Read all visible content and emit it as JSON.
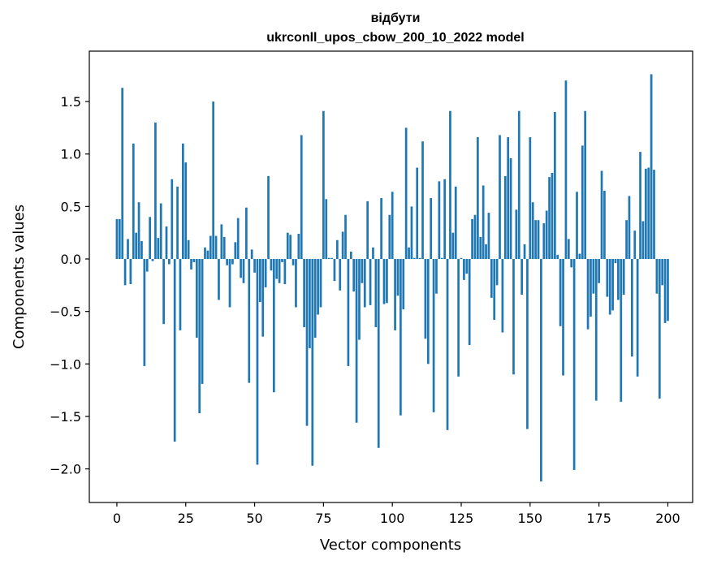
{
  "chart_data": {
    "type": "bar",
    "title": "відбути",
    "subtitle": "ukrconll_upos_cbow_200_10_2022 model",
    "xlabel": "Vector components",
    "ylabel": "Components values",
    "xlim": [
      -10,
      209
    ],
    "ylim": [
      -2.32,
      1.98
    ],
    "xticks": [
      0,
      25,
      50,
      75,
      100,
      125,
      150,
      175,
      200
    ],
    "yticks": [
      -2.0,
      -1.5,
      -1.0,
      -0.5,
      0.0,
      0.5,
      1.0,
      1.5
    ],
    "ytick_labels": [
      "−2.0",
      "−1.5",
      "−1.0",
      "−0.5",
      "0.0",
      "0.5",
      "1.0",
      "1.5"
    ],
    "bar_color": "#1f77b4",
    "grid": false,
    "values": [
      0.38,
      0.38,
      1.63,
      -0.25,
      0.19,
      -0.24,
      1.1,
      0.25,
      0.54,
      0.17,
      -1.02,
      -0.12,
      0.4,
      -0.02,
      1.3,
      0.2,
      0.53,
      -0.62,
      0.31,
      -0.05,
      0.76,
      -1.74,
      0.69,
      -0.68,
      1.1,
      0.92,
      0.18,
      -0.1,
      -0.03,
      -0.75,
      -1.47,
      -1.19,
      0.11,
      0.08,
      0.22,
      1.5,
      0.22,
      -0.39,
      0.33,
      0.21,
      -0.06,
      -0.46,
      -0.05,
      0.16,
      0.39,
      -0.18,
      -0.23,
      0.49,
      -1.18,
      0.09,
      -0.13,
      -1.96,
      -0.41,
      -0.74,
      -0.27,
      0.79,
      -0.11,
      -1.27,
      -0.19,
      -0.23,
      -0.03,
      -0.24,
      0.25,
      0.23,
      -0.06,
      -0.46,
      0.24,
      1.18,
      -0.65,
      -1.59,
      -0.85,
      -1.97,
      -0.75,
      -0.53,
      -0.46,
      1.41,
      0.57,
      0.01,
      0.01,
      -0.21,
      0.18,
      -0.3,
      0.26,
      0.42,
      -1.02,
      0.07,
      -0.31,
      -1.56,
      -0.77,
      -0.23,
      -0.46,
      0.55,
      -0.44,
      0.11,
      -0.65,
      -1.8,
      0.58,
      -0.43,
      -0.42,
      0.42,
      0.64,
      -0.68,
      -0.35,
      -1.49,
      -0.48,
      1.25,
      0.11,
      0.5,
      0.01,
      0.87,
      0.01,
      1.12,
      -0.76,
      -1.0,
      0.58,
      -1.46,
      -0.33,
      0.74,
      0.01,
      0.76,
      -1.63,
      1.41,
      0.25,
      0.69,
      -1.12,
      0.01,
      -0.2,
      -0.14,
      -0.82,
      0.38,
      0.42,
      1.16,
      0.21,
      0.7,
      0.14,
      0.44,
      -0.37,
      -0.58,
      -0.25,
      1.18,
      -0.7,
      0.79,
      1.16,
      0.96,
      -1.1,
      0.47,
      1.41,
      -0.34,
      0.14,
      -1.62,
      1.16,
      0.54,
      0.37,
      0.37,
      -2.12,
      0.34,
      0.46,
      0.78,
      0.82,
      1.4,
      0.04,
      -0.64,
      -1.11,
      1.7,
      0.19,
      -0.08,
      -2.01,
      0.64,
      0.05,
      1.08,
      1.41,
      -0.67,
      -0.55,
      -0.33,
      -1.35,
      -0.23,
      0.84,
      0.65,
      -0.36,
      -0.53,
      -0.49,
      -0.04,
      -0.39,
      -1.36,
      -0.34,
      0.37,
      0.6,
      -0.93,
      0.27,
      -1.12,
      1.02,
      0.36,
      0.86,
      0.87,
      1.76,
      0.85,
      -0.33,
      -1.33,
      -0.25,
      -0.61,
      -0.59
    ]
  }
}
